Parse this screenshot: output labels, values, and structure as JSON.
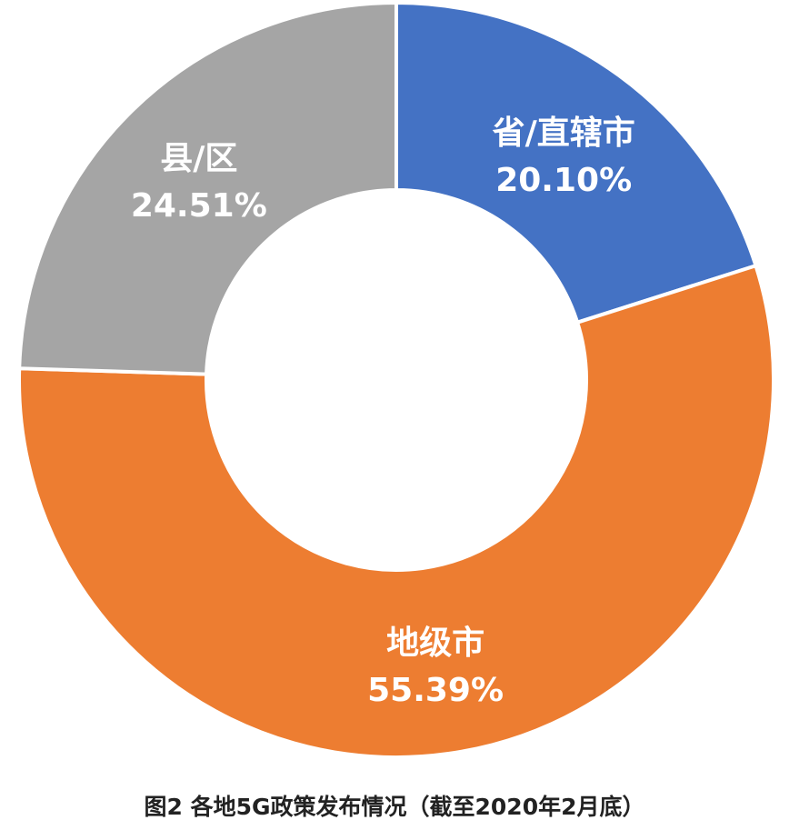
{
  "chart_data": {
    "type": "pie",
    "title": "图2 各地5G政策发布情况（截至2020年2月底）",
    "donut": true,
    "slices": [
      {
        "label": "省/直辖市",
        "value": 20.1,
        "value_label": "20.10%",
        "color": "#4472C4"
      },
      {
        "label": "地级市",
        "value": 55.39,
        "value_label": "55.39%",
        "color": "#ED7D31"
      },
      {
        "label": "县/区",
        "value": 24.51,
        "value_label": "24.51%",
        "color": "#A5A5A5"
      }
    ]
  }
}
